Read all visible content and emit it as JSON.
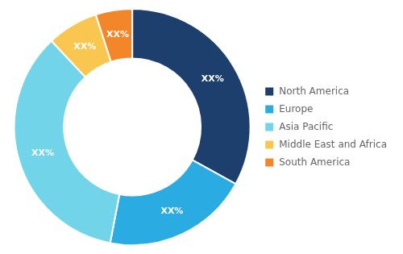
{
  "chart_data": {
    "type": "doughnut",
    "categories": [
      "North America",
      "Europe",
      "Asia Pacific",
      "Middle East and Africa",
      "South America"
    ],
    "values": [
      33,
      20,
      35,
      7,
      5
    ],
    "value_labels": [
      "XX%",
      "XX%",
      "XX%",
      "XX%",
      "XX%"
    ],
    "colors": [
      "#1c3f6e",
      "#2aace2",
      "#72d4e8",
      "#f9c74f",
      "#f4862a"
    ],
    "data_labels": true,
    "legend": "right"
  }
}
